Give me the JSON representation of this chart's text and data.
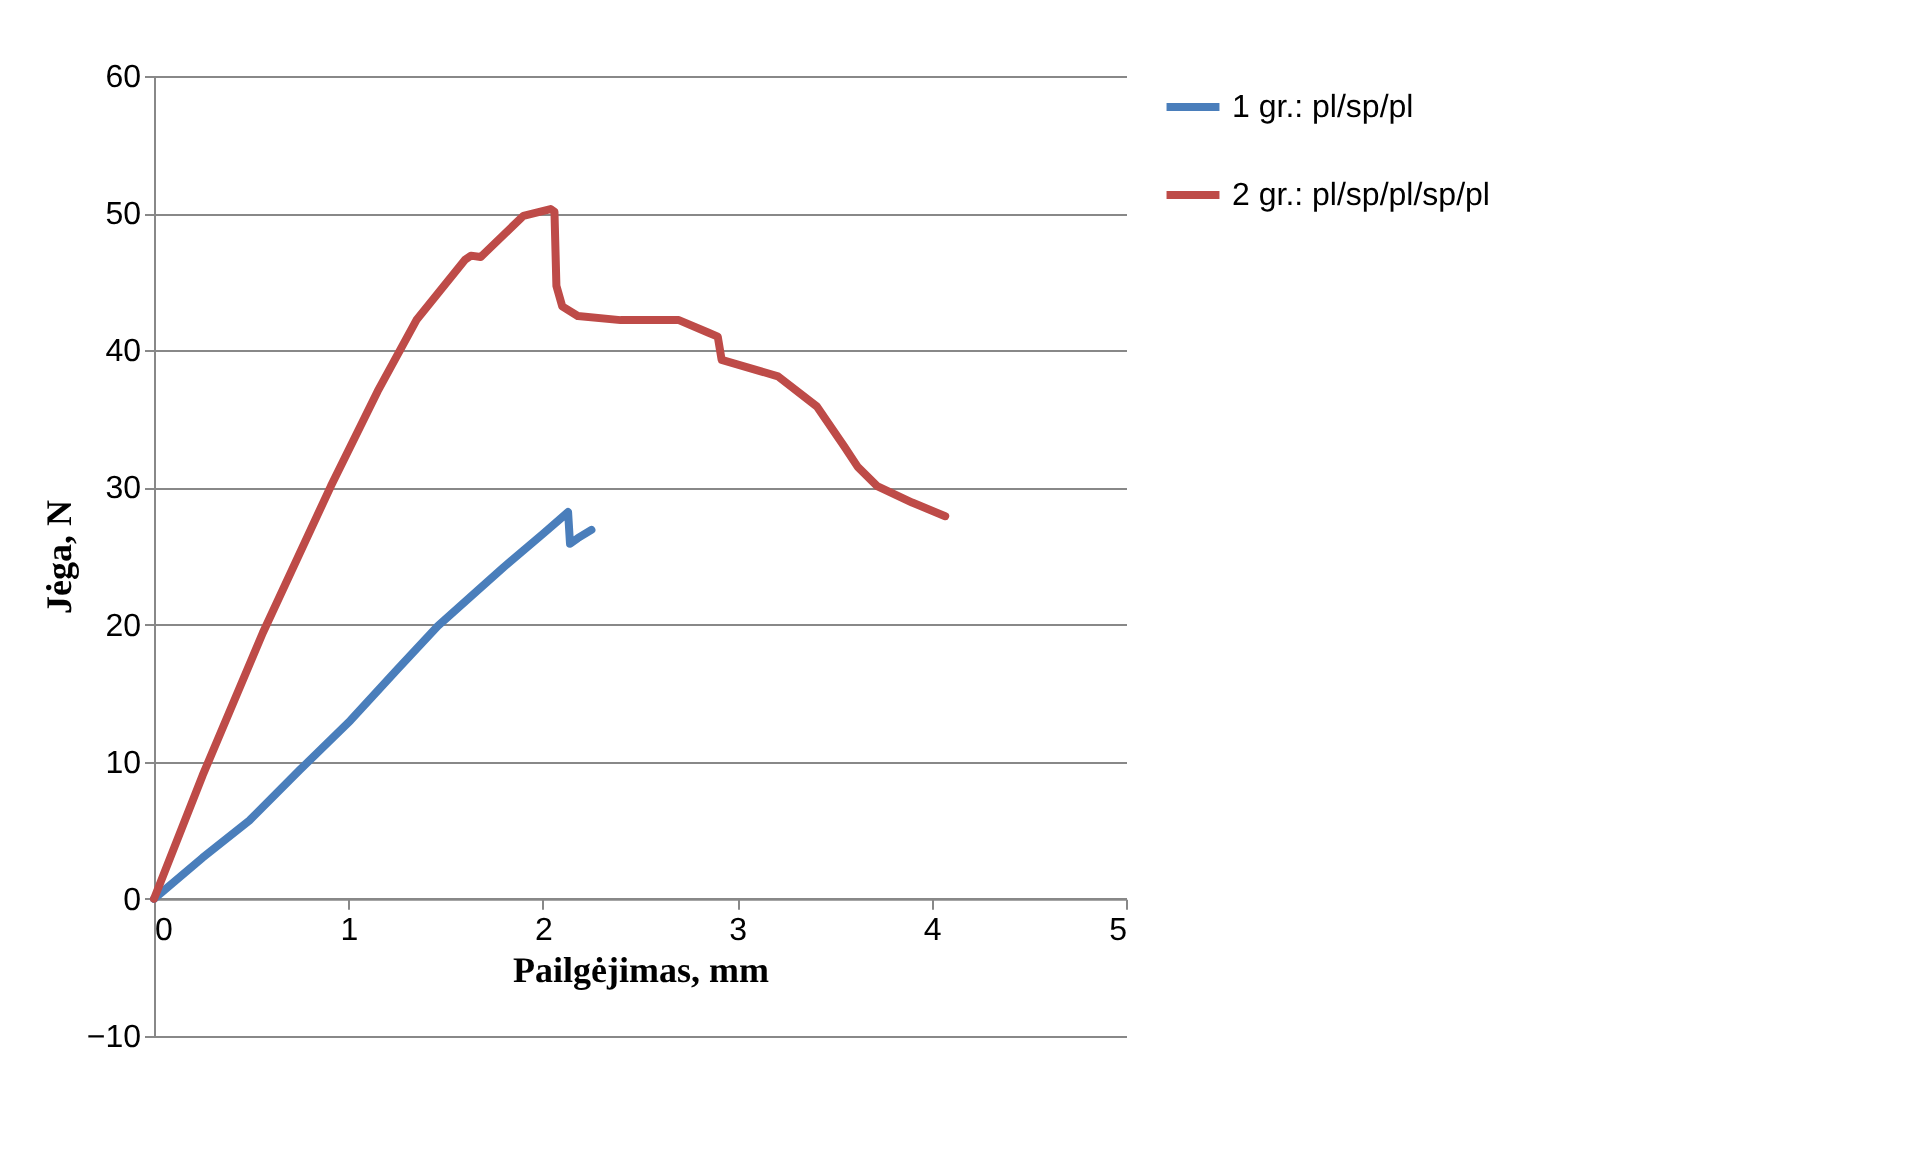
{
  "chart_data": {
    "type": "line",
    "xlabel": "Pailgėjimas, mm",
    "ylabel": "Jėga, N",
    "xlim": [
      0,
      5
    ],
    "xticks": [
      0,
      1,
      2,
      3,
      4,
      5
    ],
    "ylim": [
      -10,
      60
    ],
    "yticks": [
      -10,
      0,
      10,
      20,
      30,
      40,
      50,
      60
    ],
    "grid": "y",
    "legend": "right",
    "series": [
      {
        "name": "1  gr.: pl/sp/pl",
        "color": "#4a7ebb",
        "x": [
          0,
          0.25,
          0.49,
          0.75,
          1.01,
          1.25,
          1.46,
          1.65,
          1.8,
          2.0,
          2.13,
          2.14,
          2.18,
          2.25
        ],
        "values": [
          0,
          3,
          5.7,
          9.4,
          13,
          16.7,
          19.9,
          22.3,
          24.2,
          26.6,
          28.2,
          25.9,
          26.3,
          26.9
        ]
      },
      {
        "name": "2 gr.: pl/sp/pl/sp/pl",
        "color": "#be4b48",
        "x": [
          0,
          0.25,
          0.56,
          0.91,
          1.15,
          1.35,
          1.6,
          1.63,
          1.68,
          1.9,
          2.04,
          2.06,
          2.07,
          2.1,
          2.18,
          2.4,
          2.7,
          2.85,
          2.9,
          2.92,
          3.21,
          3.41,
          3.55,
          3.62,
          3.72,
          3.9,
          4.07
        ],
        "values": [
          0,
          9,
          19.4,
          30.1,
          37,
          42.2,
          46.6,
          46.9,
          46.8,
          49.8,
          50.3,
          50.1,
          44.7,
          43.2,
          42.5,
          42.2,
          42.2,
          41.3,
          41,
          39.3,
          38.1,
          35.9,
          33,
          31.5,
          30.1,
          28.9,
          27.9
        ]
      }
    ]
  }
}
